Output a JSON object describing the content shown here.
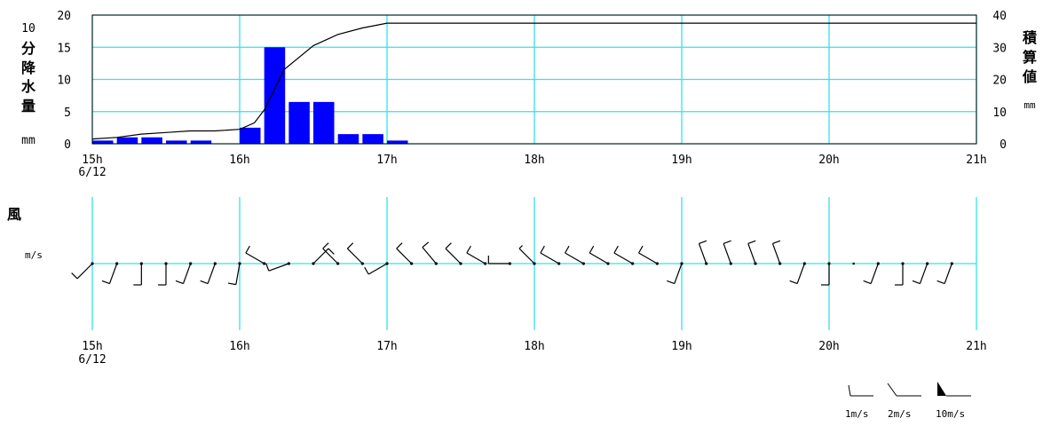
{
  "chart_data": [
    {
      "type": "bar",
      "y_left_label_chars": [
        "10",
        "分",
        "降",
        "水",
        "量",
        "mm"
      ],
      "y_right_label_chars": [
        "積",
        "算",
        "値",
        "mm"
      ],
      "ylim": [
        0,
        20
      ],
      "y2lim": [
        0,
        40
      ],
      "y_ticks": [
        "0",
        "5",
        "10",
        "15",
        "20"
      ],
      "y2_ticks": [
        "0",
        "10",
        "20",
        "30",
        "40"
      ],
      "x_ticks": [
        "15h",
        "16h",
        "17h",
        "18h",
        "19h",
        "20h",
        "21h"
      ],
      "x_date": "6/12",
      "grid": true,
      "colors": {
        "bars": "#0000ff",
        "grid": "#33e3ee",
        "line": "#000000"
      },
      "x_hours": [
        15.0,
        15.1667,
        15.3333,
        15.5,
        15.6667,
        15.8333,
        16.0,
        16.1667,
        16.3333,
        16.5,
        16.6667,
        16.8333,
        17.0
      ],
      "series": [
        {
          "name": "10分降水量",
          "values": [
            0.5,
            1.0,
            1.0,
            0.5,
            0.5,
            0.0,
            2.5,
            15.0,
            6.5,
            6.5,
            1.5,
            1.5,
            0.5
          ]
        }
      ],
      "cumulative": {
        "name": "積算値",
        "x": [
          15.0,
          15.1667,
          15.3333,
          15.5,
          15.6667,
          15.8333,
          16.0,
          16.1,
          16.1667,
          16.3,
          16.5,
          16.667,
          16.833,
          17.0,
          17.1,
          21.0
        ],
        "values": [
          1.5,
          2.0,
          3.0,
          3.5,
          4.0,
          4.0,
          4.5,
          6.5,
          10.5,
          23.0,
          30.5,
          34.0,
          36.0,
          37.5,
          37.5,
          37.5
        ]
      }
    },
    {
      "type": "scatter",
      "title": "風",
      "unit_label": "m/s",
      "x_ticks": [
        "15h",
        "16h",
        "17h",
        "18h",
        "19h",
        "20h",
        "21h"
      ],
      "x_date": "6/12",
      "grid": true,
      "barbs_description": "wind arrows every 10 minutes",
      "barbs": [
        {
          "h": 15.0,
          "dir": 225,
          "speed": 2
        },
        {
          "h": 15.1667,
          "dir": 200,
          "speed": 2
        },
        {
          "h": 15.3333,
          "dir": 180,
          "speed": 2
        },
        {
          "h": 15.5,
          "dir": 180,
          "speed": 2
        },
        {
          "h": 15.6667,
          "dir": 200,
          "speed": 2
        },
        {
          "h": 15.8333,
          "dir": 200,
          "speed": 2
        },
        {
          "h": 16.0,
          "dir": 190,
          "speed": 2
        },
        {
          "h": 16.1667,
          "dir": 300,
          "speed": 2
        },
        {
          "h": 16.3333,
          "dir": 250,
          "speed": 2
        },
        {
          "h": 16.5,
          "dir": 45,
          "speed": 2
        },
        {
          "h": 16.6667,
          "dir": 315,
          "speed": 2
        },
        {
          "h": 16.8333,
          "dir": 315,
          "speed": 2
        },
        {
          "h": 17.0,
          "dir": 240,
          "speed": 2
        },
        {
          "h": 17.1667,
          "dir": 315,
          "speed": 2
        },
        {
          "h": 17.3333,
          "dir": 320,
          "speed": 2
        },
        {
          "h": 17.5,
          "dir": 315,
          "speed": 2
        },
        {
          "h": 17.6667,
          "dir": 300,
          "speed": 2
        },
        {
          "h": 17.8333,
          "dir": 270,
          "speed": 2
        },
        {
          "h": 18.0,
          "dir": 315,
          "speed": 1
        },
        {
          "h": 18.1667,
          "dir": 300,
          "speed": 2
        },
        {
          "h": 18.3333,
          "dir": 300,
          "speed": 2
        },
        {
          "h": 18.5,
          "dir": 300,
          "speed": 2
        },
        {
          "h": 18.6667,
          "dir": 300,
          "speed": 2
        },
        {
          "h": 18.8333,
          "dir": 300,
          "speed": 2
        },
        {
          "h": 19.0,
          "dir": 200,
          "speed": 2
        },
        {
          "h": 19.1667,
          "dir": 340,
          "speed": 2
        },
        {
          "h": 19.3333,
          "dir": 340,
          "speed": 2
        },
        {
          "h": 19.5,
          "dir": 340,
          "speed": 2
        },
        {
          "h": 19.6667,
          "dir": 340,
          "speed": 2
        },
        {
          "h": 19.8333,
          "dir": 200,
          "speed": 2
        },
        {
          "h": 20.0,
          "dir": 180,
          "speed": 2
        },
        {
          "h": 20.1667,
          "dir": 0,
          "speed": 0
        },
        {
          "h": 20.3333,
          "dir": 200,
          "speed": 2
        },
        {
          "h": 20.5,
          "dir": 180,
          "speed": 2
        },
        {
          "h": 20.6667,
          "dir": 200,
          "speed": 2
        },
        {
          "h": 20.8333,
          "dir": 200,
          "speed": 2
        }
      ]
    }
  ],
  "legend": {
    "items": [
      "1m/s",
      "2m/s",
      "10m/s"
    ]
  }
}
